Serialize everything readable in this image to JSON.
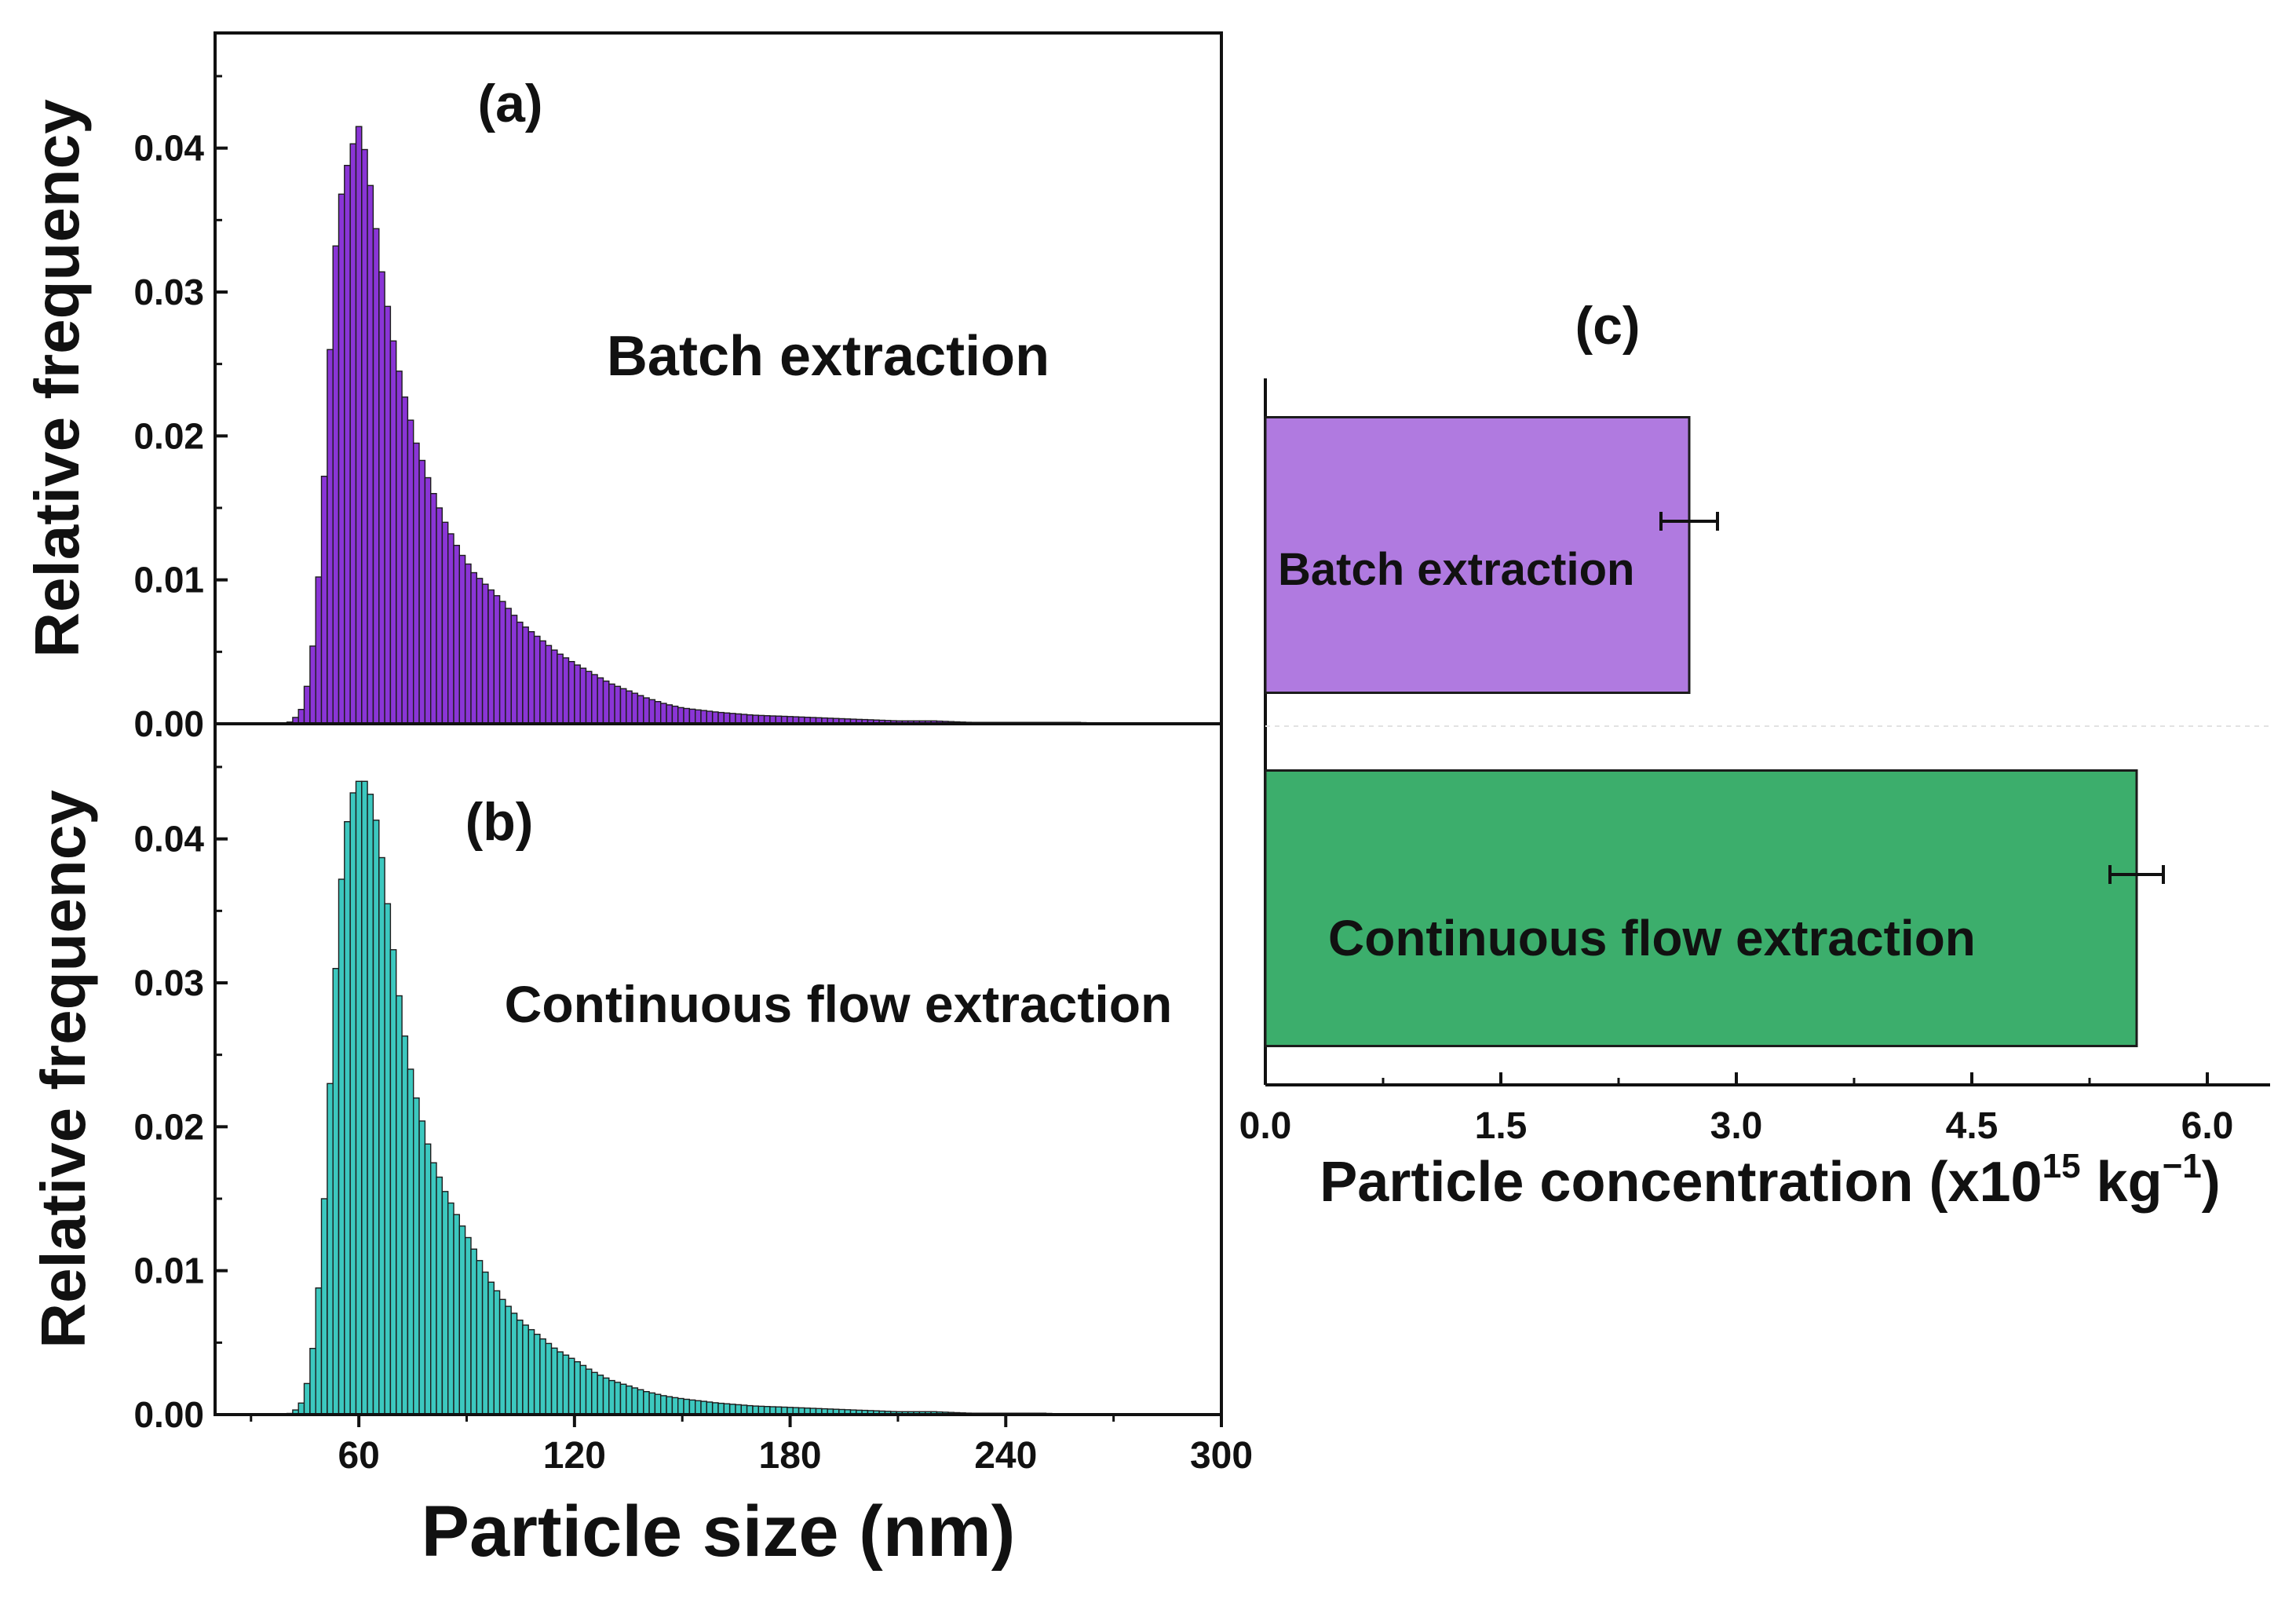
{
  "chart_data": [
    {
      "panel_label": "(a)",
      "type": "bar",
      "annotation": "Batch extraction",
      "ylabel": "Relative frequency",
      "xlabel": "",
      "xlim": [
        20,
        300
      ],
      "ylim": [
        0,
        0.048
      ],
      "yticks": [
        0.0,
        0.01,
        0.02,
        0.03,
        0.04
      ],
      "ytick_labels": [
        "0.00",
        "0.01",
        "0.02",
        "0.03",
        "0.04"
      ],
      "bin_width_nm": 1.6,
      "color": "#8a35d6",
      "x": [
        40,
        42,
        44,
        46,
        48,
        50,
        52,
        54,
        56,
        58,
        60,
        62,
        64,
        66,
        68,
        70,
        72,
        74,
        76,
        78,
        80,
        84,
        88,
        92,
        96,
        100,
        105,
        110,
        115,
        120,
        125,
        130,
        135,
        140,
        145,
        150,
        160,
        170,
        180,
        190,
        200,
        210,
        220,
        230,
        240,
        250,
        260,
        270,
        280
      ],
      "values": [
        0.0,
        0.0003,
        0.001,
        0.003,
        0.007,
        0.015,
        0.026,
        0.035,
        0.038,
        0.04,
        0.0415,
        0.0395,
        0.036,
        0.032,
        0.029,
        0.026,
        0.0235,
        0.0215,
        0.0195,
        0.018,
        0.0165,
        0.014,
        0.012,
        0.0105,
        0.0095,
        0.0085,
        0.007,
        0.006,
        0.005,
        0.0042,
        0.0035,
        0.0028,
        0.0023,
        0.0018,
        0.0014,
        0.0011,
        0.0008,
        0.0006,
        0.0005,
        0.0004,
        0.0003,
        0.0002,
        0.0002,
        0.0001,
        0.0001,
        0.0001,
        0.0001,
        0.0,
        0.0
      ]
    },
    {
      "panel_label": "(b)",
      "type": "bar",
      "annotation": "Continuous flow extraction",
      "ylabel": "Relative frequency",
      "xlabel": "Particle size (nm)",
      "xlim": [
        20,
        300
      ],
      "ylim": [
        0,
        0.048
      ],
      "xticks": [
        60,
        120,
        180,
        240,
        300
      ],
      "xtick_labels": [
        "60",
        "120",
        "180",
        "240",
        "300"
      ],
      "yticks": [
        0.0,
        0.01,
        0.02,
        0.03,
        0.04
      ],
      "ytick_labels": [
        "0.00",
        "0.01",
        "0.02",
        "0.03",
        "0.04"
      ],
      "bin_width_nm": 1.6,
      "color": "#3cc8bf",
      "x": [
        40,
        42,
        44,
        46,
        48,
        50,
        52,
        54,
        56,
        58,
        60,
        62,
        64,
        66,
        68,
        70,
        72,
        74,
        76,
        78,
        80,
        84,
        88,
        92,
        96,
        100,
        105,
        110,
        115,
        120,
        125,
        130,
        135,
        140,
        145,
        150,
        160,
        170,
        180,
        190,
        200,
        210,
        220,
        230,
        240,
        250,
        260,
        270,
        280
      ],
      "values": [
        0.0,
        0.0002,
        0.0008,
        0.0025,
        0.006,
        0.013,
        0.023,
        0.033,
        0.04,
        0.043,
        0.044,
        0.044,
        0.0425,
        0.0395,
        0.0355,
        0.0315,
        0.0275,
        0.0245,
        0.022,
        0.02,
        0.018,
        0.0155,
        0.0135,
        0.0115,
        0.0095,
        0.008,
        0.0065,
        0.0055,
        0.0045,
        0.0038,
        0.003,
        0.0024,
        0.002,
        0.0016,
        0.0013,
        0.0011,
        0.0008,
        0.0006,
        0.0005,
        0.0004,
        0.0003,
        0.0002,
        0.0002,
        0.0001,
        0.0001,
        0.0001,
        0.0,
        0.0,
        0.0
      ]
    },
    {
      "panel_label": "(c)",
      "type": "bar",
      "orientation": "horizontal",
      "categories": [
        "Batch extraction",
        "Continuous flow extraction"
      ],
      "values": [
        2.7,
        5.55
      ],
      "errors": [
        0.18,
        0.17
      ],
      "colors": [
        "#b07ae0",
        "#3cae6c"
      ],
      "xlabel": "Particle concentration (x10",
      "xlabel_sup": "15",
      "xlabel_tail": " kg",
      "xlabel_sup2": "−1",
      "xlabel_end": ")",
      "xlim": [
        0,
        6.4
      ],
      "xticks": [
        0.0,
        1.5,
        3.0,
        4.5,
        6.0
      ],
      "xtick_labels": [
        "0.0",
        "1.5",
        "3.0",
        "4.5",
        "6.0"
      ]
    }
  ]
}
